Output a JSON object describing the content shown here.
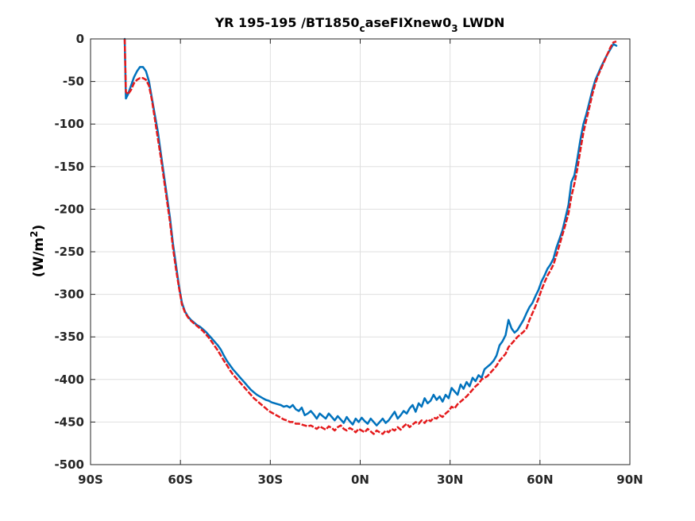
{
  "chart_data": {
    "type": "line",
    "title": {
      "main": "YR 195-195 /BT1850",
      "sub1": "c",
      "mid": "aseFIXnew0",
      "sub2": "3",
      "tail": " LWDN"
    },
    "ylabel": {
      "main": "(W/m",
      "sup": "2",
      "tail": ")"
    },
    "xlabel": "",
    "xlim": [
      -90,
      90
    ],
    "ylim": [
      -500,
      0
    ],
    "x_ticks": [
      {
        "value": -90,
        "label": "90S"
      },
      {
        "value": -60,
        "label": "60S"
      },
      {
        "value": -30,
        "label": "30S"
      },
      {
        "value": 0,
        "label": "0N"
      },
      {
        "value": 30,
        "label": "30N"
      },
      {
        "value": 60,
        "label": "60N"
      },
      {
        "value": 90,
        "label": "90N"
      }
    ],
    "y_ticks": [
      {
        "value": 0,
        "label": "0"
      },
      {
        "value": -50,
        "label": "-50"
      },
      {
        "value": -100,
        "label": "-100"
      },
      {
        "value": -150,
        "label": "-150"
      },
      {
        "value": -200,
        "label": "-200"
      },
      {
        "value": -250,
        "label": "-250"
      },
      {
        "value": -300,
        "label": "-300"
      },
      {
        "value": -350,
        "label": "-350"
      },
      {
        "value": -400,
        "label": "-400"
      },
      {
        "value": -450,
        "label": "-450"
      },
      {
        "value": -500,
        "label": "-500"
      }
    ],
    "grid": true,
    "series": [
      {
        "color": "#0072bd",
        "dash": "solid",
        "x": [
          -78.6,
          -78.2,
          -77.5,
          -76.5,
          -75.5,
          -74.5,
          -73.5,
          -72.5,
          -71.5,
          -70.5,
          -69.5,
          -68.5,
          -67.5,
          -66.5,
          -65.5,
          -64.5,
          -63.5,
          -62.5,
          -61.5,
          -60.5,
          -59.5,
          -58.5,
          -57.5,
          -56.5,
          -55.5,
          -54.5,
          -53.5,
          -52.5,
          -51.5,
          -50.5,
          -49.5,
          -48.5,
          -47.5,
          -46.5,
          -45.5,
          -44.5,
          -43.5,
          -42.5,
          -41.5,
          -40.5,
          -39.5,
          -38.5,
          -37.5,
          -36.5,
          -35.5,
          -34.5,
          -33.5,
          -32.5,
          -31.5,
          -30.5,
          -29.5,
          -28.5,
          -27.5,
          -26.5,
          -25.5,
          -24.5,
          -23.5,
          -22.5,
          -21.5,
          -20.5,
          -19.5,
          -18.5,
          -17.5,
          -16.5,
          -15.5,
          -14.5,
          -13.5,
          -12.5,
          -11.5,
          -10.5,
          -9.5,
          -8.5,
          -7.5,
          -6.5,
          -5.5,
          -4.5,
          -3.5,
          -2.5,
          -1.5,
          -0.5,
          0.5,
          1.5,
          2.5,
          3.5,
          4.5,
          5.5,
          6.5,
          7.5,
          8.5,
          9.5,
          10.5,
          11.5,
          12.5,
          13.5,
          14.5,
          15.5,
          16.5,
          17.5,
          18.5,
          19.5,
          20.5,
          21.5,
          22.5,
          23.5,
          24.5,
          25.5,
          26.5,
          27.5,
          28.5,
          29.5,
          30.5,
          31.5,
          32.5,
          33.5,
          34.5,
          35.5,
          36.5,
          37.5,
          38.5,
          39.5,
          40.5,
          41.5,
          42.5,
          43.5,
          44.5,
          45.5,
          46.5,
          47.5,
          48.5,
          49.5,
          50.5,
          51.5,
          52.5,
          53.5,
          54.5,
          55.5,
          56.5,
          57.5,
          58.5,
          59.5,
          60.5,
          61.5,
          62.5,
          63.5,
          64.5,
          65.5,
          66.5,
          67.5,
          68.5,
          69.5,
          70.5,
          71.5,
          72.5,
          73.5,
          74.5,
          75.5,
          76.5,
          77.5,
          78.5,
          79.5,
          80.5,
          81.5,
          82.5,
          83.5,
          84.5,
          85.5
        ],
        "y": [
          0,
          -70,
          -65,
          -55,
          -45,
          -38,
          -33,
          -33,
          -38,
          -50,
          -70,
          -90,
          -110,
          -135,
          -160,
          -185,
          -210,
          -240,
          -265,
          -290,
          -310,
          -320,
          -326,
          -330,
          -333,
          -336,
          -338,
          -341,
          -344,
          -348,
          -352,
          -356,
          -360,
          -365,
          -372,
          -378,
          -383,
          -388,
          -392,
          -396,
          -400,
          -404,
          -408,
          -412,
          -415,
          -418,
          -420,
          -422,
          -424,
          -425,
          -427,
          -428,
          -429,
          -430,
          -432,
          -431,
          -433,
          -430,
          -435,
          -437,
          -433,
          -442,
          -440,
          -437,
          -441,
          -446,
          -440,
          -443,
          -446,
          -440,
          -444,
          -448,
          -443,
          -447,
          -451,
          -444,
          -449,
          -453,
          -446,
          -450,
          -445,
          -449,
          -452,
          -446,
          -450,
          -454,
          -450,
          -446,
          -451,
          -448,
          -443,
          -438,
          -446,
          -442,
          -437,
          -440,
          -434,
          -430,
          -438,
          -428,
          -432,
          -422,
          -428,
          -425,
          -418,
          -424,
          -420,
          -426,
          -418,
          -422,
          -410,
          -414,
          -418,
          -406,
          -411,
          -403,
          -408,
          -398,
          -402,
          -395,
          -398,
          -388,
          -385,
          -382,
          -378,
          -372,
          -360,
          -355,
          -348,
          -330,
          -340,
          -345,
          -342,
          -336,
          -330,
          -322,
          -315,
          -310,
          -302,
          -295,
          -285,
          -278,
          -270,
          -265,
          -258,
          -245,
          -235,
          -225,
          -210,
          -195,
          -168,
          -160,
          -140,
          -118,
          -100,
          -88,
          -74,
          -60,
          -48,
          -40,
          -32,
          -25,
          -18,
          -12,
          -6,
          -8
        ]
      },
      {
        "color": "#e41a1c",
        "dash": "dashed",
        "x": [
          -78.6,
          -78.2,
          -77.5,
          -76.5,
          -75.5,
          -74.5,
          -73.5,
          -72.5,
          -71.5,
          -70.5,
          -69.5,
          -68.5,
          -67.5,
          -66.5,
          -65.5,
          -64.5,
          -63.5,
          -62.5,
          -61.5,
          -60.5,
          -59.5,
          -58.5,
          -57.5,
          -56.5,
          -55.5,
          -54.5,
          -53.5,
          -52.5,
          -51.5,
          -50.5,
          -49.5,
          -48.5,
          -47.5,
          -46.5,
          -45.5,
          -44.5,
          -43.5,
          -42.5,
          -41.5,
          -40.5,
          -39.5,
          -38.5,
          -37.5,
          -36.5,
          -35.5,
          -34.5,
          -33.5,
          -32.5,
          -31.5,
          -30.5,
          -29.5,
          -28.5,
          -27.5,
          -26.5,
          -25.5,
          -24.5,
          -23.5,
          -22.5,
          -21.5,
          -20.5,
          -19.5,
          -18.5,
          -17.5,
          -16.5,
          -15.5,
          -14.5,
          -13.5,
          -12.5,
          -11.5,
          -10.5,
          -9.5,
          -8.5,
          -7.5,
          -6.5,
          -5.5,
          -4.5,
          -3.5,
          -2.5,
          -1.5,
          -0.5,
          0.5,
          1.5,
          2.5,
          3.5,
          4.5,
          5.5,
          6.5,
          7.5,
          8.5,
          9.5,
          10.5,
          11.5,
          12.5,
          13.5,
          14.5,
          15.5,
          16.5,
          17.5,
          18.5,
          19.5,
          20.5,
          21.5,
          22.5,
          23.5,
          24.5,
          25.5,
          26.5,
          27.5,
          28.5,
          29.5,
          30.5,
          31.5,
          32.5,
          33.5,
          34.5,
          35.5,
          36.5,
          37.5,
          38.5,
          39.5,
          40.5,
          41.5,
          42.5,
          43.5,
          44.5,
          45.5,
          46.5,
          47.5,
          48.5,
          49.5,
          50.5,
          51.5,
          52.5,
          53.5,
          54.5,
          55.5,
          56.5,
          57.5,
          58.5,
          59.5,
          60.5,
          61.5,
          62.5,
          63.5,
          64.5,
          65.5,
          66.5,
          67.5,
          68.5,
          69.5,
          70.5,
          71.5,
          72.5,
          73.5,
          74.5,
          75.5,
          76.5,
          77.5,
          78.5,
          79.5,
          80.5,
          81.5,
          82.5,
          83.5,
          84.5,
          85.5
        ],
        "y": [
          0,
          -62,
          -65,
          -60,
          -52,
          -48,
          -46,
          -46,
          -48,
          -55,
          -72,
          -95,
          -118,
          -140,
          -165,
          -190,
          -215,
          -245,
          -270,
          -292,
          -312,
          -321,
          -327,
          -331,
          -334,
          -337,
          -340,
          -343,
          -347,
          -351,
          -356,
          -361,
          -366,
          -372,
          -378,
          -383,
          -389,
          -394,
          -398,
          -402,
          -406,
          -410,
          -414,
          -418,
          -422,
          -425,
          -428,
          -431,
          -434,
          -437,
          -439,
          -441,
          -443,
          -445,
          -447,
          -448,
          -450,
          -450,
          -452,
          -452,
          -453,
          -454,
          -455,
          -454,
          -456,
          -458,
          -455,
          -457,
          -459,
          -455,
          -457,
          -460,
          -456,
          -454,
          -458,
          -460,
          -457,
          -459,
          -462,
          -458,
          -460,
          -462,
          -458,
          -461,
          -464,
          -460,
          -462,
          -464,
          -460,
          -462,
          -458,
          -460,
          -456,
          -459,
          -455,
          -452,
          -456,
          -453,
          -450,
          -452,
          -448,
          -451,
          -447,
          -449,
          -445,
          -446,
          -442,
          -444,
          -440,
          -437,
          -432,
          -434,
          -429,
          -426,
          -423,
          -420,
          -416,
          -412,
          -408,
          -405,
          -400,
          -398,
          -396,
          -392,
          -388,
          -384,
          -378,
          -374,
          -370,
          -362,
          -358,
          -354,
          -350,
          -347,
          -344,
          -340,
          -330,
          -322,
          -314,
          -305,
          -295,
          -286,
          -278,
          -272,
          -265,
          -254,
          -242,
          -230,
          -218,
          -205,
          -185,
          -170,
          -152,
          -130,
          -110,
          -95,
          -80,
          -65,
          -52,
          -42,
          -34,
          -26,
          -18,
          -10,
          -4,
          -3
        ]
      }
    ]
  }
}
